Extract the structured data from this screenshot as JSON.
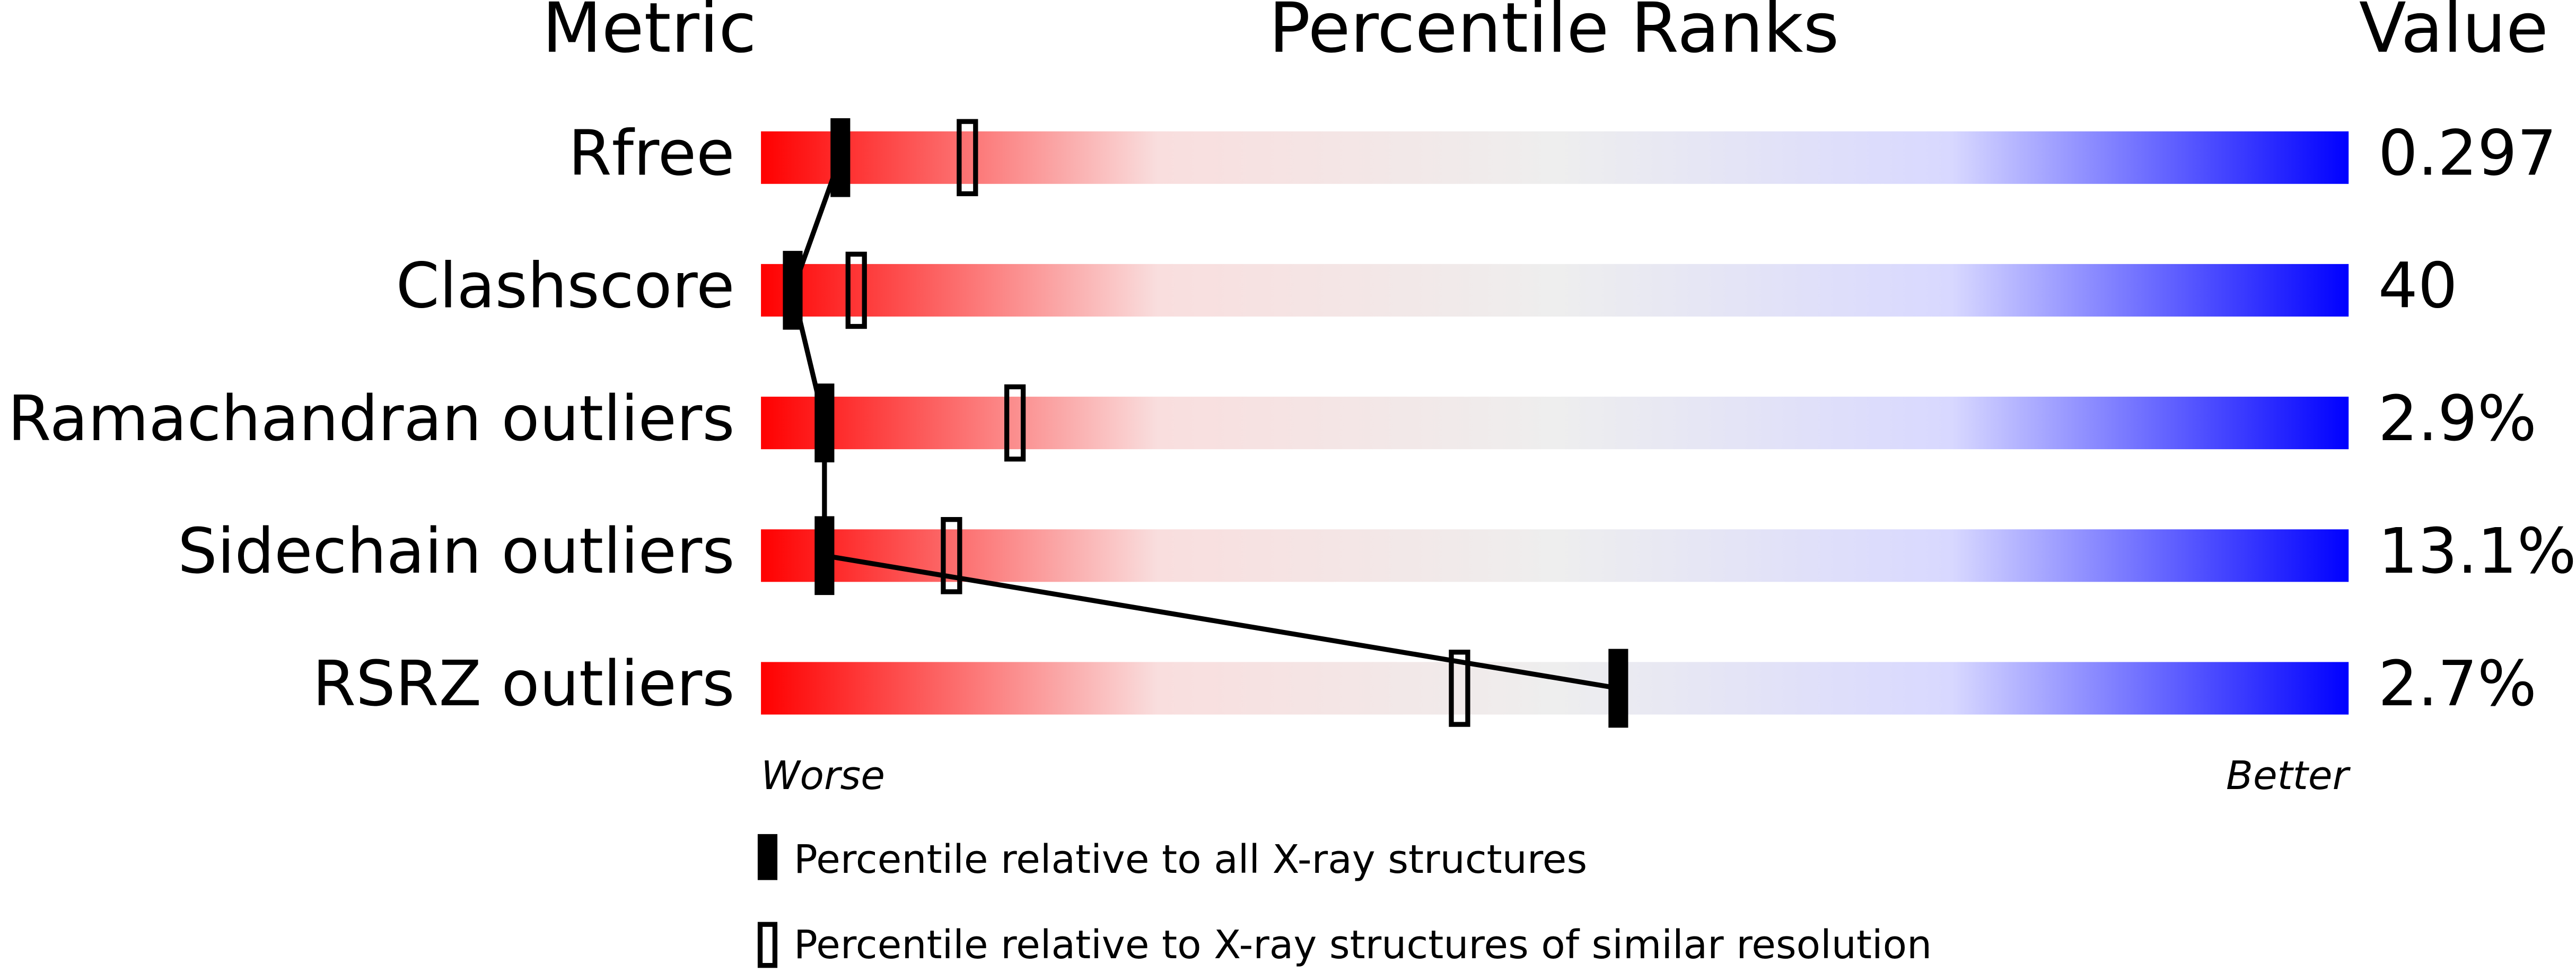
{
  "chart_data": {
    "type": "percentile",
    "column_headers": [
      "Metric",
      "Percentile Ranks",
      "Value"
    ],
    "categories": [
      "Rfree",
      "Clashscore",
      "Ramachandran outliers",
      "Sidechain outliers",
      "RSRZ outliers"
    ],
    "value_texts": [
      "0.297",
      "40",
      "2.9%",
      "13.1%",
      "2.7%"
    ],
    "xlim": [
      0,
      100
    ],
    "axis_labels": [
      "Worse",
      "Better"
    ],
    "gradient": [
      "#ff0000",
      "#f9dede",
      "#eeeeee",
      "#d8d8ff",
      "#0000ff"
    ],
    "series": [
      {
        "name": "Percentile relative to all X-ray structures",
        "style": "filled",
        "color": "#000000",
        "values": [
          5,
          2,
          4,
          4,
          54
        ]
      },
      {
        "name": "Percentile relative to X-ray structures of similar resolution",
        "style": "open",
        "color": "#000000",
        "values": [
          13,
          6,
          16,
          12,
          44
        ]
      }
    ]
  }
}
